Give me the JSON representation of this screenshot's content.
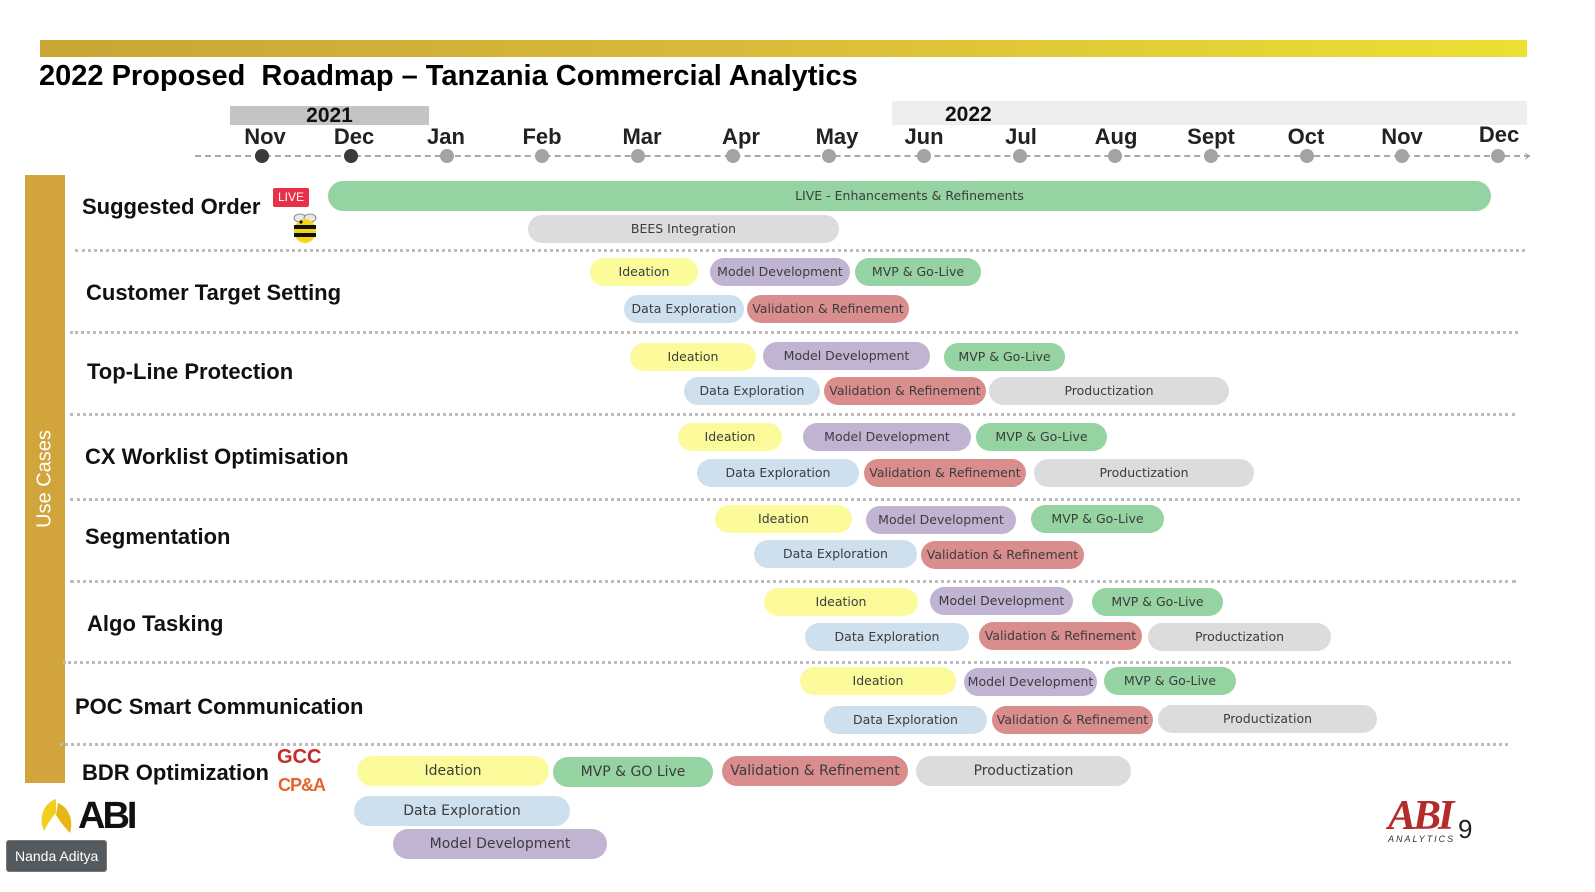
{
  "title": "2022 Proposed  Roadmap – Tanzania Commercial Analytics",
  "years": {
    "y2021": "2021",
    "y2022": "2022"
  },
  "months": [
    "Nov",
    "Dec",
    "Jan",
    "Feb",
    "Mar",
    "Apr",
    "May",
    "Jun",
    "Jul",
    "Aug",
    "Sept",
    "Oct",
    "Nov",
    "Dec"
  ],
  "sidebar_label": "Use Cases",
  "live_badge": "LIVE",
  "colors": {
    "accent_gold": "#d1a53c",
    "green": "#95d3a3",
    "yellow": "#fcfb9c",
    "purple": "#c0b4d2",
    "blue": "#cedfee",
    "red": "#d98d8d",
    "grey": "#dcdcdc",
    "live_red": "#e8304b"
  },
  "rows": [
    {
      "name": "Suggested Order",
      "bars": [
        "LIVE - Enhancements & Refinements",
        "BEES Integration"
      ]
    },
    {
      "name": "Customer Target Setting",
      "bars": [
        "Ideation",
        "Model Development",
        "MVP & Go-Live",
        "Data Exploration",
        "Validation & Refinement"
      ]
    },
    {
      "name": "Top-Line Protection",
      "bars": [
        "Ideation",
        "Model Development",
        "MVP & Go-Live",
        "Data Exploration",
        "Validation & Refinement",
        "Productization"
      ]
    },
    {
      "name": "CX Worklist Optimisation",
      "bars": [
        "Ideation",
        "Model Development",
        "MVP & Go-Live",
        "Data Exploration",
        "Validation & Refinement",
        "Productization"
      ]
    },
    {
      "name": "Segmentation",
      "bars": [
        "Ideation",
        "Model Development",
        "MVP & Go-Live",
        "Data Exploration",
        "Validation & Refinement"
      ]
    },
    {
      "name": "Algo Tasking",
      "bars": [
        "Ideation",
        "Model Development",
        "MVP & Go-Live",
        "Data Exploration",
        "Validation & Refinement",
        "Productization"
      ]
    },
    {
      "name": "POC Smart Communication",
      "bars": [
        "Ideation",
        "Model Development",
        "MVP & Go-Live",
        "Data Exploration",
        "Validation & Refinement",
        "Productization"
      ]
    },
    {
      "name": "BDR Optimization",
      "bars": [
        "Ideation",
        "MVP & GO Live",
        "Validation & Refinement",
        "Productization",
        "Data Exploration",
        "Model Development"
      ]
    }
  ],
  "badges": {
    "gcc": "GCC",
    "cpa": "CP&A"
  },
  "logos": {
    "abi": "ABI",
    "abi_analytics": "ABI",
    "abi_analytics_sub": "ANALYTICS"
  },
  "icons": [
    "bee-icon",
    "abi-logo-icon"
  ],
  "page_number": "9",
  "participant_name": "Nanda Aditya"
}
